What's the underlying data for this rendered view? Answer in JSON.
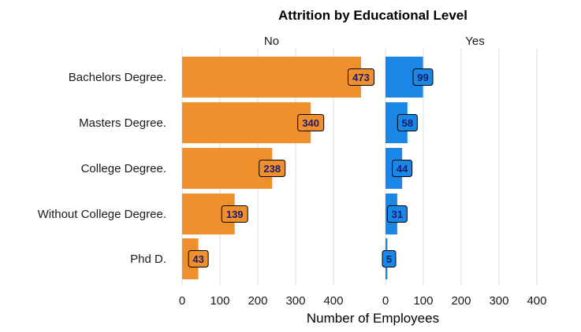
{
  "chart_data": {
    "type": "bar",
    "orientation": "horizontal",
    "title": "Attrition by Educational Level",
    "xlabel": "Number of Employees",
    "ylabel": "",
    "categories": [
      "Bachelors Degree.",
      "Masters Degree.",
      "College Degree.",
      "Without College Degree.",
      "Phd D."
    ],
    "facets": [
      {
        "name": "No",
        "color": "#f0902c",
        "values": [
          473,
          340,
          238,
          139,
          43
        ]
      },
      {
        "name": "Yes",
        "color": "#1a87e6",
        "values": [
          99,
          58,
          44,
          31,
          5
        ]
      }
    ],
    "xlim": [
      0,
      473
    ],
    "xticks": [
      0,
      100,
      200,
      300,
      400
    ],
    "grid": "vertical",
    "legend": "none"
  }
}
